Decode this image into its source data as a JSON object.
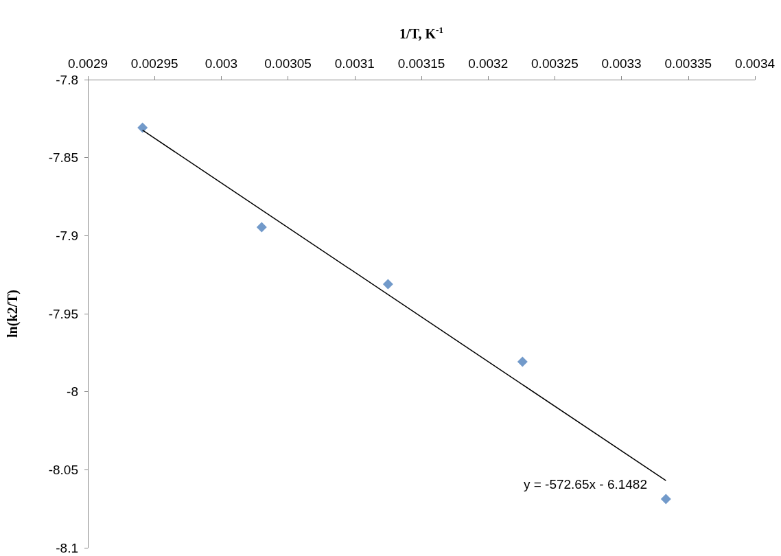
{
  "chart_data": {
    "type": "scatter",
    "xlabel": "1/T, K$^{-1}$",
    "ylabel": "ln(k2/T)",
    "x": [
      0.002941,
      0.0030303,
      0.003125,
      0.0032258,
      0.0033333
    ],
    "series": [
      {
        "color": "#4f81bd",
        "marker": "diamond",
        "values": [
          -7.8308,
          -7.8946,
          -7.9311,
          -7.9808,
          -8.0688
        ]
      },
      {
        "type": "line",
        "color": "#000000",
        "marker": "none",
        "x": [
          0.002941,
          0.0033333
        ],
        "values": [
          -7.8324,
          -8.057
        ]
      }
    ],
    "xlim": [
      0.0029,
      0.0034
    ],
    "xticks": [
      0.0029,
      0.00295,
      0.003,
      0.00305,
      0.0031,
      0.00315,
      0.0032,
      0.00325,
      0.0033,
      0.00335,
      0.0034
    ],
    "ylim": [
      -8.1,
      -7.8
    ],
    "yticks": [
      -8.1,
      -8.05,
      -8,
      -7.95,
      -7.9,
      -7.85,
      -7.8
    ],
    "grid": false,
    "annotations": [
      "y = -572.65x - 6.1482"
    ]
  }
}
